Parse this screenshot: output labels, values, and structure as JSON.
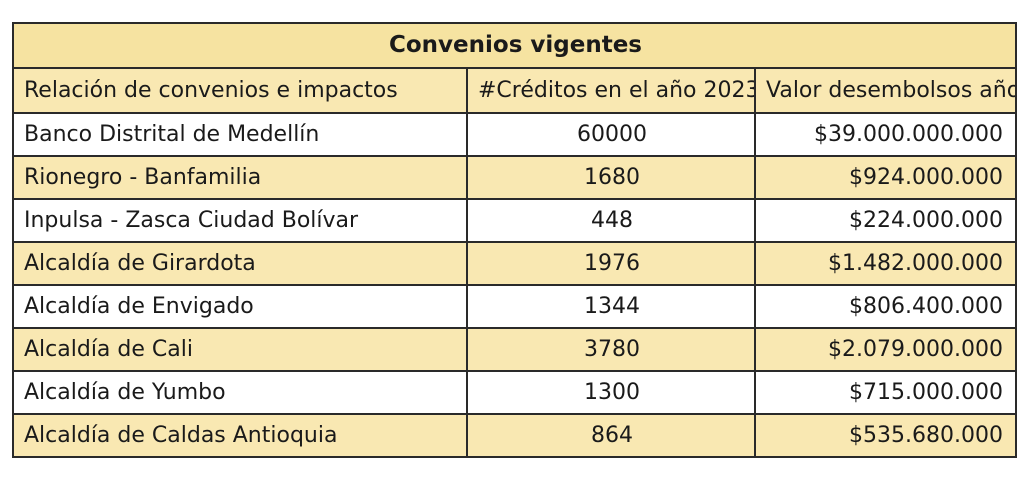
{
  "table": {
    "title": "Convenios vigentes",
    "headers": [
      "Relación de convenios e impactos",
      "#Créditos en el año 2023",
      "Valor desembolsos año"
    ],
    "rows": [
      {
        "name": "Banco Distrital de Medellín",
        "credits": "60000",
        "value": "$39.000.000.000"
      },
      {
        "name": "Rionegro - Banfamilia",
        "credits": "1680",
        "value": "$924.000.000"
      },
      {
        "name": "Inpulsa - Zasca Ciudad Bolívar",
        "credits": "448",
        "value": "$224.000.000"
      },
      {
        "name": "Alcaldía de Girardota",
        "credits": "1976",
        "value": "$1.482.000.000"
      },
      {
        "name": "Alcaldía de Envigado",
        "credits": "1344",
        "value": "$806.400.000"
      },
      {
        "name": "Alcaldía de Cali",
        "credits": "3780",
        "value": "$2.079.000.000"
      },
      {
        "name": "Alcaldía de Yumbo",
        "credits": "1300",
        "value": "$715.000.000"
      },
      {
        "name": "Alcaldía de Caldas Antioquia",
        "credits": "864",
        "value": "$535.680.000"
      }
    ]
  },
  "colors": {
    "title_fill": "#f6e3a1",
    "band_fill": "#f9e8b2",
    "border": "#2a2a2a"
  }
}
